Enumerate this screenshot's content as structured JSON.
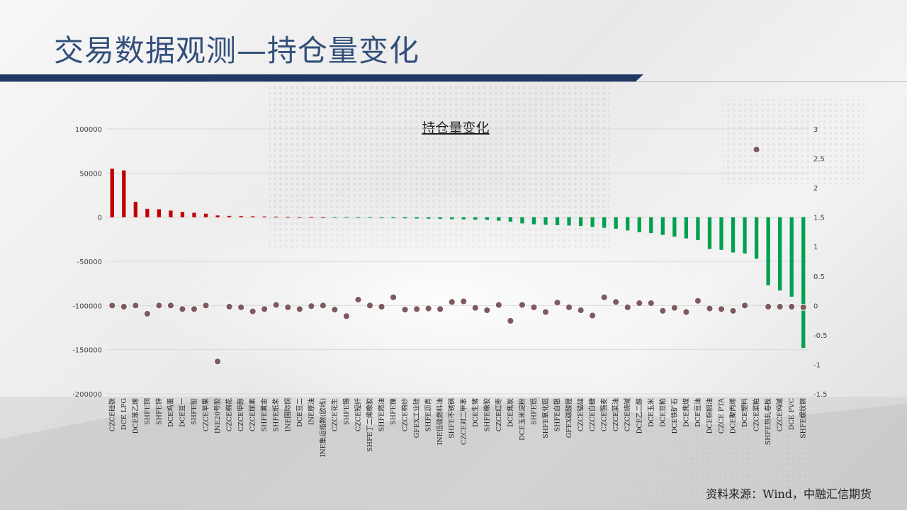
{
  "slide": {
    "title": "交易数据观测—持仓量变化",
    "source": "资料来源：Wind，中融汇信期货"
  },
  "chart_data": {
    "type": "bar",
    "title": "持仓量变化",
    "categories": [
      "CZCE硅铁",
      "DCE LPG",
      "DCE苯乙烯",
      "SHFE铜",
      "SHFE锌",
      "DCE鸡蛋",
      "DCE豆一",
      "SHFE铅",
      "CZCE苹果",
      "INE20号胶",
      "CZCE棉花",
      "CZCE甲醇",
      "CZCE尿素",
      "SHFE黄金",
      "SHFE纸浆",
      "INE国际铜",
      "DCE豆二",
      "INE原油",
      "INE集运指数(欧线)",
      "CZCE花生",
      "SHFE锡",
      "CZCE短纤",
      "SHFE丁二烯橡胶",
      "SHFE燃油",
      "SHFE镍",
      "CZCE棉纱",
      "GFEX工业硅",
      "SHFE沥青",
      "INE低硫燃料油",
      "SHFE不锈钢",
      "CZCE对二甲苯",
      "DCE生猪",
      "SHFE橡胶",
      "CZCE红枣",
      "DCE焦炭",
      "DCE玉米淀粉",
      "SHFE铝",
      "SHFE氧化铝",
      "SHFE白银",
      "GFEX碳酸锂",
      "CZCE锰硅",
      "CZCE白糖",
      "CZCE强麦",
      "CZCE菜油",
      "CZCE烧碱",
      "DCE乙二醇",
      "DCE玉米",
      "DCE豆粕",
      "DCE铁矿石",
      "DCE焦煤",
      "DCE豆油",
      "DCE棕榈油",
      "CZCE PTA",
      "DCE聚丙烯",
      "DCE塑料",
      "CZCE菜粕",
      "SHFE热轧卷板",
      "CZCE纯碱",
      "DCE PVC",
      "SHFE螺纹钢"
    ],
    "series": [
      {
        "name": "",
        "axis": "left",
        "values": [
          55000,
          53000,
          17500,
          9500,
          9000,
          7500,
          6000,
          5000,
          4000,
          2000,
          1500,
          1200,
          1000,
          900,
          700,
          500,
          300,
          200,
          100,
          -100,
          -300,
          -500,
          -700,
          -900,
          -1000,
          -1300,
          -1500,
          -1700,
          -2000,
          -2300,
          -2500,
          -2800,
          -3000,
          -4000,
          -5000,
          -7000,
          -8000,
          -8500,
          -9000,
          -9500,
          -10000,
          -11000,
          -12000,
          -13000,
          -15000,
          -17000,
          -18000,
          -20000,
          -22000,
          -24000,
          -26000,
          -36000,
          -37000,
          -40000,
          -41000,
          -47000,
          -77000,
          -83000,
          -90000,
          -148000
        ]
      },
      {
        "name": "",
        "axis": "right",
        "values": [
          0,
          -0.02,
          0,
          -0.14,
          0,
          0,
          -0.06,
          -0.06,
          0,
          -0.95,
          -0.02,
          -0.03,
          -0.1,
          -0.06,
          0.01,
          -0.03,
          -0.06,
          -0.01,
          0,
          -0.07,
          -0.18,
          0.1,
          0,
          -0.02,
          0.14,
          -0.07,
          -0.06,
          -0.05,
          -0.06,
          0.06,
          0.07,
          -0.04,
          -0.08,
          0.01,
          -0.26,
          0.01,
          -0.03,
          -0.11,
          0.05,
          -0.03,
          -0.08,
          -0.17,
          0.14,
          0.06,
          -0.03,
          0.04,
          0.04,
          -0.09,
          -0.04,
          -0.11,
          0.08,
          -0.05,
          -0.06,
          -0.09,
          0,
          2.65,
          -0.02,
          -0.02,
          -0.02,
          -0.03
        ]
      }
    ],
    "left_axis": {
      "ylim": [
        -200000,
        100000
      ],
      "ticks": [
        "-200000",
        "-150000",
        "-100000",
        "-50000",
        "0",
        "50000",
        "100000"
      ]
    },
    "right_axis": {
      "ylim": [
        -1.5,
        3
      ],
      "ticks": [
        "-1.5",
        "-1",
        "-0.5",
        "0",
        "0.5",
        "1",
        "1.5",
        "2",
        "2.5",
        "3"
      ]
    },
    "grid": true,
    "colors": {
      "positive": "#c00000",
      "negative": "#00a050",
      "dot": "#7e5a5f",
      "grid": "#d9d9d9",
      "axis_text": "#404040"
    }
  }
}
